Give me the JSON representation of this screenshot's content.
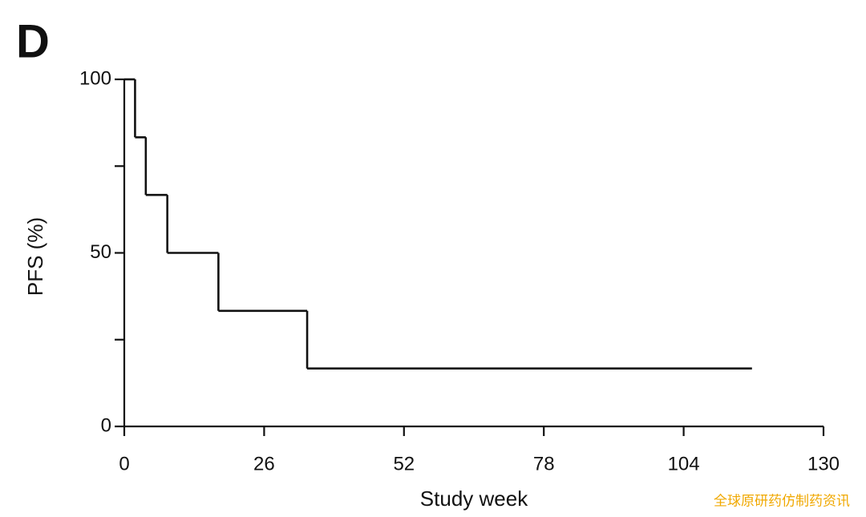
{
  "chart_data": {
    "type": "step",
    "panel_label": "D",
    "xlabel": "Study week",
    "ylabel": "PFS (%)",
    "watermark": "全球原研药仿制药资讯",
    "x": [
      0,
      2,
      4,
      8,
      17.5,
      34,
      116.7
    ],
    "values": [
      100,
      83.3,
      66.7,
      50,
      33.3,
      16.7,
      16.7
    ],
    "color": "#111111",
    "xlim": [
      0,
      130
    ],
    "xticks": [
      0,
      26,
      52,
      78,
      104,
      130
    ],
    "ylim": [
      0,
      100
    ],
    "yticks": [
      0,
      50,
      100
    ],
    "yticks_minor": [
      25,
      75
    ]
  }
}
